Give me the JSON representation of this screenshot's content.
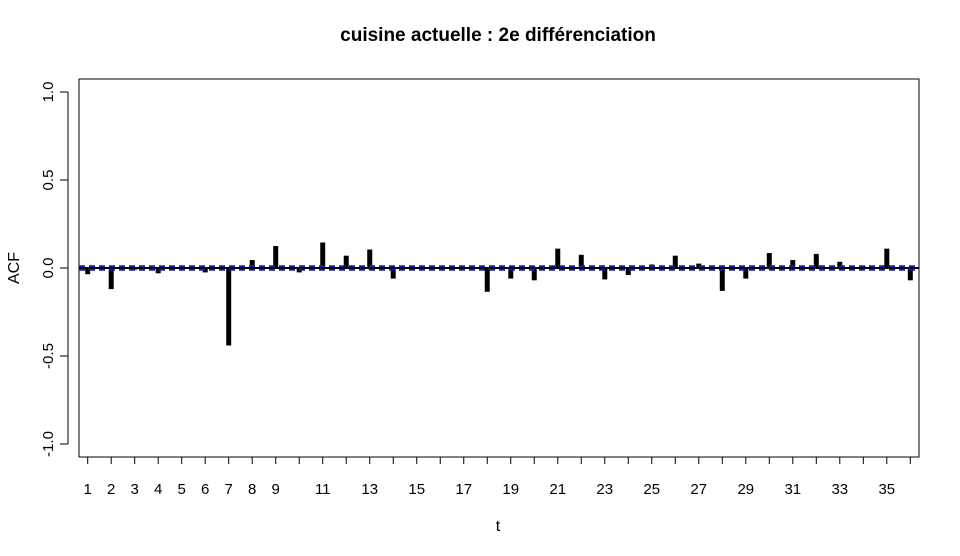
{
  "chart_data": {
    "type": "bar",
    "title": "cuisine actuelle : 2e différenciation",
    "xlabel": "t",
    "ylabel": "ACF",
    "ylim": [
      -1.0,
      1.0
    ],
    "yticks": [
      "-1.0",
      "-0.5",
      "0.0",
      "0.5",
      "1.0"
    ],
    "xticks": [
      "1",
      "2",
      "3",
      "4",
      "5",
      "6",
      "7",
      "8",
      "9",
      "11",
      "13",
      "15",
      "17",
      "19",
      "21",
      "23",
      "25",
      "27",
      "29",
      "31",
      "33",
      "35"
    ],
    "x": [
      1,
      2,
      3,
      4,
      5,
      6,
      7,
      8,
      9,
      10,
      11,
      12,
      13,
      14,
      15,
      16,
      17,
      18,
      19,
      20,
      21,
      22,
      23,
      24,
      25,
      26,
      27,
      28,
      29,
      30,
      31,
      32,
      33,
      34,
      35,
      36
    ],
    "values": [
      -0.035,
      -0.12,
      -0.01,
      -0.03,
      -0.01,
      -0.025,
      -0.44,
      0.045,
      0.125,
      -0.025,
      0.145,
      0.07,
      0.105,
      -0.06,
      0.0,
      0.0,
      0.0,
      -0.135,
      -0.06,
      -0.07,
      0.11,
      0.075,
      -0.065,
      -0.04,
      0.02,
      0.07,
      0.025,
      -0.13,
      -0.06,
      0.085,
      0.045,
      0.08,
      0.035,
      0.01,
      0.11,
      -0.07
    ],
    "confidence_band": 0.01,
    "confidence_color": "#1c1c9c",
    "bar_color": "#000000"
  }
}
